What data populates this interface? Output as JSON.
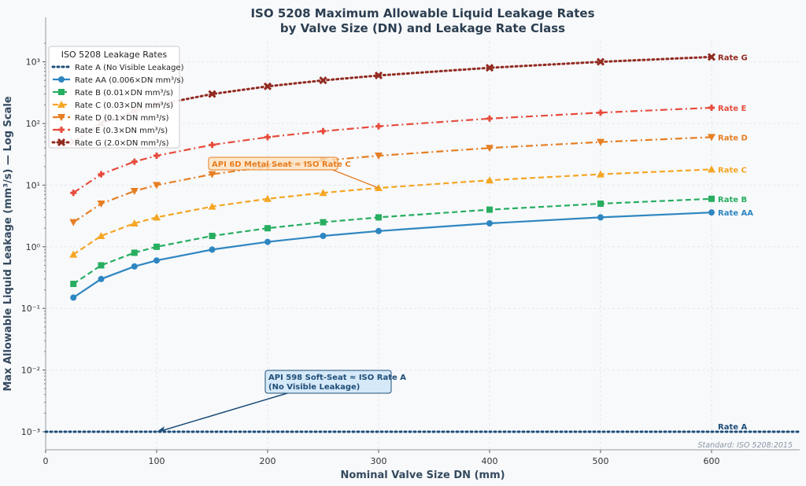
{
  "chart_data": {
    "type": "line",
    "title": "ISO 5208 Maximum Allowable Liquid Leakage Rates",
    "subtitle": "by Valve Size (DN) and Leakage Rate Class",
    "xlabel": "Nominal Valve Size DN (mm)",
    "ylabel": "Max Allowable Liquid Leakage (mm³/s) — Log Scale",
    "xlim": [
      0,
      680
    ],
    "ylim": [
      0.0005,
      5500
    ],
    "yscale": "log",
    "grid": true,
    "x_ticks": [
      0,
      100,
      200,
      300,
      400,
      500,
      600
    ],
    "y_ticks": [
      {
        "value": 0.001,
        "label": "10⁻³"
      },
      {
        "value": 0.01,
        "label": "10⁻²"
      },
      {
        "value": 0.1,
        "label": "10⁻¹"
      },
      {
        "value": 1,
        "label": "10⁰"
      },
      {
        "value": 10,
        "label": "10¹"
      },
      {
        "value": 100,
        "label": "10²"
      },
      {
        "value": 1000,
        "label": "10³"
      }
    ],
    "legend": {
      "title": "ISO 5208 Leakage Rates",
      "placement": "top-left"
    },
    "x": [
      25,
      50,
      80,
      100,
      150,
      200,
      250,
      300,
      400,
      500,
      600
    ],
    "series": [
      {
        "name": "Rate A (No Visible Leakage)",
        "end_label": "Rate A",
        "color": "#1f4e79",
        "dash": "dotted",
        "marker": "none",
        "values": [
          0.001,
          0.001,
          0.001,
          0.001,
          0.001,
          0.001,
          0.001,
          0.001,
          0.001,
          0.001,
          0.001
        ],
        "full_width": true
      },
      {
        "name": "Rate AA (0.006×DN mm³/s)",
        "end_label": "Rate AA",
        "color": "#2e86c1",
        "dash": "solid",
        "marker": "circle",
        "values": [
          0.15,
          0.3,
          0.48,
          0.6,
          0.9,
          1.2,
          1.5,
          1.8,
          2.4,
          3.0,
          3.6
        ]
      },
      {
        "name": "Rate B (0.01×DN mm³/s)",
        "end_label": "Rate B",
        "color": "#27ae60",
        "dash": "dashed",
        "marker": "square",
        "values": [
          0.25,
          0.5,
          0.8,
          1.0,
          1.5,
          2.0,
          2.5,
          3.0,
          4.0,
          5.0,
          6.0
        ]
      },
      {
        "name": "Rate C (0.03×DN mm³/s)",
        "end_label": "Rate C",
        "color": "#f5a623",
        "dash": "dashed",
        "marker": "triangle-up",
        "values": [
          0.75,
          1.5,
          2.4,
          3.0,
          4.5,
          6.0,
          7.5,
          9.0,
          12,
          15,
          18
        ]
      },
      {
        "name": "Rate D (0.1×DN mm³/s)",
        "end_label": "Rate D",
        "color": "#e67e22",
        "dash": "dashdot",
        "marker": "triangle-down",
        "values": [
          2.5,
          5,
          8,
          10,
          15,
          20,
          25,
          30,
          40,
          50,
          60
        ]
      },
      {
        "name": "Rate E (0.3×DN mm³/s)",
        "end_label": "Rate E",
        "color": "#e74c3c",
        "dash": "dashdot",
        "marker": "plus",
        "values": [
          7.5,
          15,
          24,
          30,
          45,
          60,
          75,
          90,
          120,
          150,
          180
        ]
      },
      {
        "name": "Rate G (2.0×DN mm³/s)",
        "end_label": "Rate G",
        "color": "#922b21",
        "dash": "dotted",
        "marker": "x",
        "values": [
          50,
          100,
          160,
          200,
          300,
          400,
          500,
          600,
          800,
          1000,
          1200
        ]
      }
    ],
    "annotations": [
      {
        "text": "API 6D Metal Seat ≈ ISO Rate C",
        "point": [
          300,
          9.0
        ],
        "color": "#e67e22",
        "fill": "#fde2c0"
      },
      {
        "text": [
          "API 598 Soft-Seat ≈ ISO Rate A",
          "(No Visible Leakage)"
        ],
        "point": [
          100,
          0.001
        ],
        "color": "#1f4e79",
        "fill": "#d6e9f8"
      }
    ],
    "footnote": "Standard: ISO 5208:2015"
  }
}
